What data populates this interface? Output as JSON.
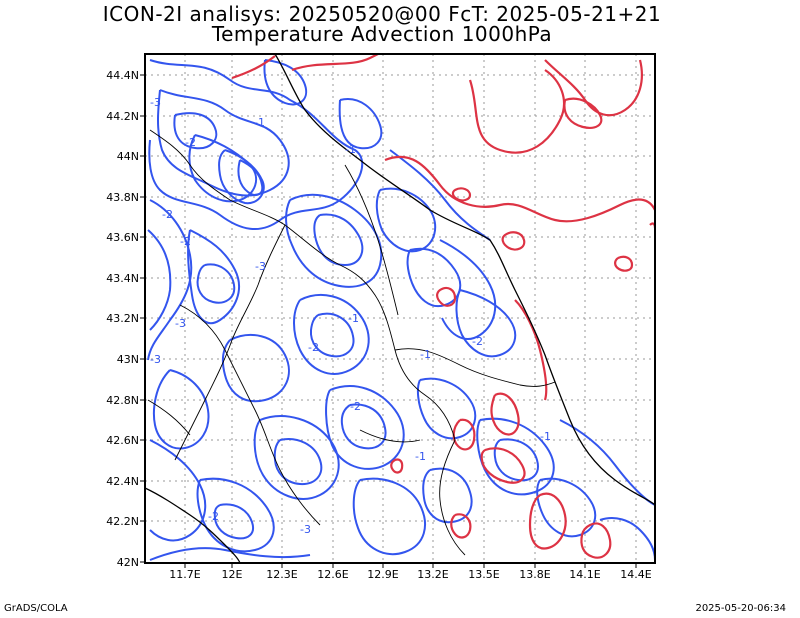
{
  "title_line1": "ICON-2I analisys: 20250520@00 FcT: 2025-05-21+21",
  "title_line2": "Temperature Advection 1000hPa",
  "footer_left": "GrADS/COLA",
  "footer_right": "2025-05-20-06:34",
  "map": {
    "lon_labels": [
      "11.7E",
      "12E",
      "12.3E",
      "12.6E",
      "12.9E",
      "13.2E",
      "13.5E",
      "13.8E",
      "14.1E",
      "14.4E"
    ],
    "lat_labels": [
      "44.4N",
      "44.2N",
      "44N",
      "43.8N",
      "43.6N",
      "43.4N",
      "43.2N",
      "43N",
      "42.8N",
      "42.6N",
      "42.4N",
      "42.2N",
      "42N"
    ],
    "contour_labels": [
      "-3",
      "-2",
      "-1",
      "-2",
      "-3",
      "-2",
      "-1",
      "-2",
      "-3",
      "-1",
      "-2",
      "-3",
      "-1",
      "-2",
      "-1",
      "-3",
      "-2",
      "-1"
    ],
    "colors": {
      "negative": "#3355ee",
      "positive": "#dd3344",
      "coast": "#000000",
      "grid": "#999999"
    }
  }
}
